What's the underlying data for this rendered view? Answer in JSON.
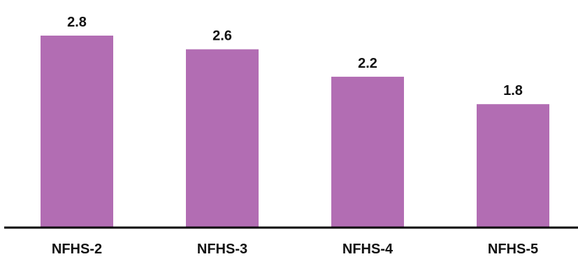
{
  "chart_data": {
    "type": "bar",
    "categories": [
      "NFHS-2",
      "NFHS-3",
      "NFHS-4",
      "NFHS-5"
    ],
    "values": [
      2.8,
      2.6,
      2.2,
      1.8
    ],
    "value_labels": [
      "2.8",
      "2.6",
      "2.2",
      "1.8"
    ],
    "title": "",
    "xlabel": "",
    "ylabel": "",
    "ylim": [
      0,
      2.8
    ],
    "grid": false,
    "legend": "none",
    "colors": {
      "bar": "#b26db3",
      "axis": "#000000",
      "text": "#111111"
    }
  }
}
